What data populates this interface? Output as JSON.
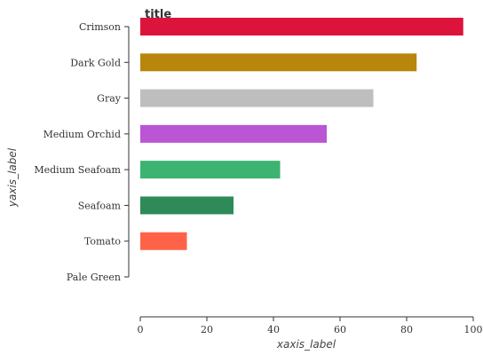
{
  "chart_data": {
    "type": "bar",
    "orientation": "horizontal",
    "title": "title",
    "xlabel": "xaxis_label",
    "ylabel": "yaxis_label",
    "categories": [
      "Pale Green",
      "Tomato",
      "Seafoam",
      "Medium Seafoam",
      "Medium Orchid",
      "Gray",
      "Dark Gold",
      "Crimson"
    ],
    "values": [
      0,
      14,
      28,
      42,
      56,
      70,
      83,
      97
    ],
    "colors": [
      "#98fb98",
      "#ff6347",
      "#2e8b57",
      "#3cb371",
      "#ba55d3",
      "#bebebe",
      "#b8860b",
      "#dc143c"
    ],
    "xlim": [
      0,
      100
    ],
    "xticks": [
      0,
      20,
      40,
      60,
      80,
      100
    ],
    "grid": false,
    "legend": "none"
  }
}
